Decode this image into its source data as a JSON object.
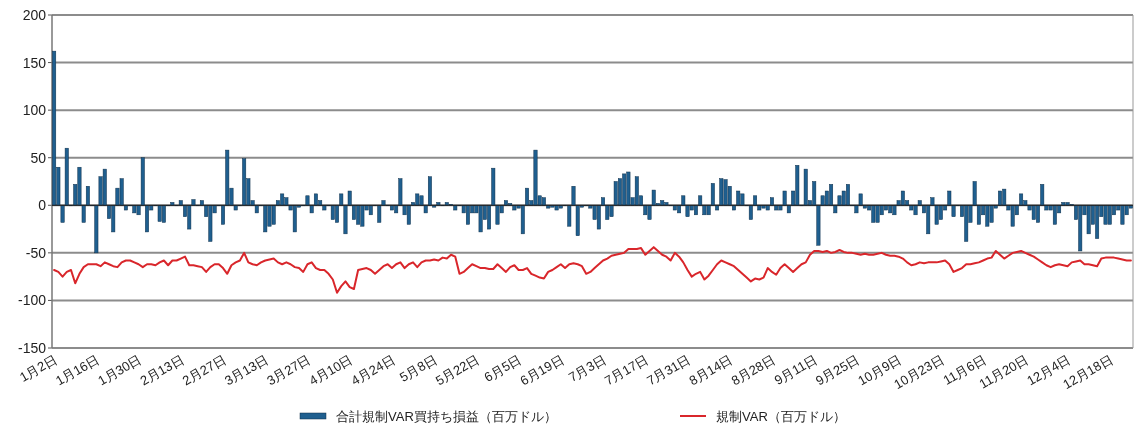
{
  "chart_data": {
    "type": "bar",
    "categories": [
      "1月2日",
      null,
      null,
      null,
      null,
      null,
      null,
      null,
      null,
      null,
      "1月16日",
      null,
      null,
      null,
      null,
      null,
      null,
      null,
      null,
      null,
      "1月30日",
      null,
      null,
      null,
      null,
      null,
      null,
      null,
      null,
      null,
      "2月13日",
      null,
      null,
      null,
      null,
      null,
      null,
      null,
      null,
      null,
      "2月27日",
      null,
      null,
      null,
      null,
      null,
      null,
      null,
      null,
      null,
      "3月13日",
      null,
      null,
      null,
      null,
      null,
      null,
      null,
      null,
      null,
      "3月27日",
      null,
      null,
      null,
      null,
      null,
      null,
      null,
      null,
      null,
      "4月10日",
      null,
      null,
      null,
      null,
      null,
      null,
      null,
      null,
      null,
      "4月24日",
      null,
      null,
      null,
      null,
      null,
      null,
      null,
      null,
      null,
      "5月8日",
      null,
      null,
      null,
      null,
      null,
      null,
      null,
      null,
      null,
      "5月22日",
      null,
      null,
      null,
      null,
      null,
      null,
      null,
      null,
      null,
      "6月5日",
      null,
      null,
      null,
      null,
      null,
      null,
      null,
      null,
      null,
      "6月19日",
      null,
      null,
      null,
      null,
      null,
      null,
      null,
      null,
      null,
      "7月3日",
      null,
      null,
      null,
      null,
      null,
      null,
      null,
      null,
      null,
      "7月17日",
      null,
      null,
      null,
      null,
      null,
      null,
      null,
      null,
      null,
      "7月31日",
      null,
      null,
      null,
      null,
      null,
      null,
      null,
      null,
      null,
      "8月14日",
      null,
      null,
      null,
      null,
      null,
      null,
      null,
      null,
      null,
      "8月28日",
      null,
      null,
      null,
      null,
      null,
      null,
      null,
      null,
      null,
      "9月11日",
      null,
      null,
      null,
      null,
      null,
      null,
      null,
      null,
      null,
      "9月25日",
      null,
      null,
      null,
      null,
      null,
      null,
      null,
      null,
      null,
      "10月9日",
      null,
      null,
      null,
      null,
      null,
      null,
      null,
      null,
      null,
      "10月23日",
      null,
      null,
      null,
      null,
      null,
      null,
      null,
      null,
      null,
      "11月6日",
      null,
      null,
      null,
      null,
      null,
      null,
      null,
      null,
      null,
      "11月20日",
      null,
      null,
      null,
      null,
      null,
      null,
      null,
      null,
      null,
      "12月4日",
      null,
      null,
      null,
      null,
      null,
      null,
      null,
      null,
      null,
      "12月18日",
      null,
      null,
      null,
      null,
      null
    ],
    "series": [
      {
        "name": "合計規制VAR買持ち損益（百万ドル）",
        "color": "#1f5f8f",
        "values": [
          162,
          40,
          -18,
          60,
          0,
          22,
          40,
          -18,
          20,
          0,
          -50,
          30,
          38,
          -14,
          -28,
          18,
          28,
          -5,
          0,
          -8,
          -10,
          50,
          -28,
          -5,
          0,
          -17,
          -18,
          0,
          3,
          0,
          5,
          -12,
          -25,
          6,
          0,
          5,
          -12,
          -38,
          -8,
          0,
          -20,
          58,
          18,
          -5,
          0,
          49,
          28,
          5,
          -8,
          0,
          -28,
          -22,
          -20,
          5,
          12,
          8,
          -5,
          -28,
          -2,
          0,
          10,
          -8,
          12,
          5,
          -5,
          0,
          -15,
          -18,
          12,
          -30,
          15,
          -15,
          -20,
          -22,
          -5,
          -10,
          0,
          -18,
          5,
          0,
          -5,
          -8,
          28,
          -10,
          -20,
          3,
          12,
          10,
          -8,
          30,
          -2,
          3,
          0,
          3,
          1,
          -5,
          0,
          -8,
          -20,
          -8,
          -8,
          -28,
          -15,
          -25,
          39,
          -20,
          -8,
          5,
          2,
          -5,
          -3,
          -30,
          18,
          5,
          58,
          10,
          8,
          -3,
          -2,
          -5,
          -3,
          0,
          -22,
          20,
          -32,
          -2,
          0,
          -3,
          -15,
          -25,
          8,
          -15,
          -12,
          25,
          28,
          33,
          35,
          8,
          30,
          10,
          -10,
          -15,
          16,
          2,
          5,
          3,
          0,
          -5,
          -8,
          10,
          -12,
          -5,
          -10,
          10,
          -10,
          -10,
          23,
          -5,
          28,
          27,
          20,
          -5,
          15,
          12,
          0,
          -15,
          10,
          -5,
          -3,
          -5,
          8,
          -5,
          -5,
          15,
          -8,
          15,
          42,
          0,
          38,
          5,
          25,
          -42,
          10,
          15,
          22,
          -8,
          10,
          15,
          22,
          0,
          -8,
          12,
          -3,
          -5,
          -18,
          -18,
          -10,
          -5,
          -8,
          -10,
          5,
          15,
          5,
          -5,
          -10,
          5,
          -8,
          -30,
          8,
          -20,
          -15,
          -5,
          15,
          -12,
          0,
          -12,
          -38,
          -18,
          25,
          -20,
          -10,
          -22,
          -18,
          -3,
          15,
          17,
          -5,
          -22,
          -10,
          12,
          5,
          -5,
          -15,
          -18,
          22,
          -5,
          -5,
          -20,
          -8,
          3,
          3,
          1,
          -15,
          -48,
          -10,
          -30,
          -20,
          -35,
          -12,
          -20,
          -20,
          -10,
          -5,
          -20,
          -10,
          -3
        ]
      },
      {
        "name": "規制VAR（百万ドル）",
        "type": "line",
        "color": "#d9262b",
        "values": [
          -68,
          -70,
          -75,
          -70,
          -68,
          -82,
          -72,
          -65,
          -62,
          -62,
          -62,
          -64,
          -60,
          -62,
          -64,
          -65,
          -60,
          -58,
          -58,
          -60,
          -62,
          -65,
          -62,
          -62,
          -63,
          -60,
          -58,
          -63,
          -58,
          -58,
          -56,
          -54,
          -63,
          -63,
          -64,
          -65,
          -70,
          -65,
          -62,
          -62,
          -66,
          -72,
          -63,
          -60,
          -58,
          -50,
          -60,
          -62,
          -63,
          -60,
          -58,
          -57,
          -56,
          -60,
          -62,
          -60,
          -62,
          -65,
          -66,
          -70,
          -62,
          -60,
          -66,
          -68,
          -68,
          -72,
          -78,
          -92,
          -85,
          -80,
          -86,
          -88,
          -68,
          -67,
          -66,
          -68,
          -72,
          -68,
          -64,
          -62,
          -66,
          -62,
          -60,
          -66,
          -62,
          -60,
          -65,
          -60,
          -58,
          -58,
          -57,
          -58,
          -55,
          -56,
          -52,
          -54,
          -72,
          -70,
          -66,
          -62,
          -64,
          -66,
          -66,
          -67,
          -67,
          -62,
          -66,
          -70,
          -65,
          -63,
          -68,
          -68,
          -66,
          -72,
          -74,
          -76,
          -77,
          -70,
          -68,
          -65,
          -62,
          -66,
          -62,
          -61,
          -62,
          -64,
          -72,
          -70,
          -66,
          -62,
          -58,
          -56,
          -53,
          -52,
          -51,
          -50,
          -46,
          -46,
          -46,
          -45,
          -52,
          -48,
          -44,
          -48,
          -52,
          -54,
          -58,
          -50,
          -54,
          -60,
          -68,
          -75,
          -72,
          -70,
          -78,
          -74,
          -68,
          -62,
          -58,
          -60,
          -62,
          -64,
          -68,
          -72,
          -76,
          -80,
          -77,
          -78,
          -76,
          -66,
          -70,
          -73,
          -66,
          -62,
          -66,
          -70,
          -66,
          -62,
          -60,
          -52,
          -48,
          -48,
          -49,
          -48,
          -50,
          -49,
          -47,
          -49,
          -50,
          -50,
          -51,
          -52,
          -51,
          -52,
          -52,
          -51,
          -50,
          -52,
          -53,
          -53,
          -54,
          -56,
          -60,
          -63,
          -62,
          -60,
          -61,
          -60,
          -60,
          -60,
          -59,
          -58,
          -62,
          -70,
          -68,
          -66,
          -62,
          -62,
          -61,
          -60,
          -58,
          -56,
          -55,
          -48,
          -52,
          -56,
          -53,
          -50,
          -49,
          -48,
          -50,
          -52,
          -54,
          -57,
          -60,
          -63,
          -65,
          -63,
          -62,
          -63,
          -64,
          -60,
          -59,
          -58,
          -62,
          -62,
          -63,
          -64,
          -56,
          -55,
          -55,
          -55,
          -56,
          -57,
          -58,
          -58
        ]
      }
    ],
    "ylim": [
      -150,
      200
    ],
    "yticks": [
      -150,
      -100,
      -50,
      0,
      50,
      100,
      150,
      200
    ],
    "grid": "y",
    "legend": "bottom"
  }
}
